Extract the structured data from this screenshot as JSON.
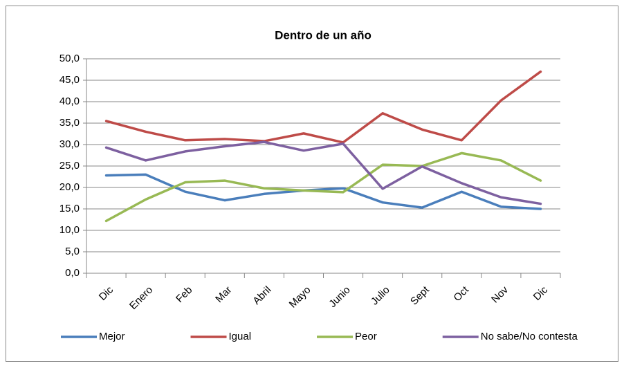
{
  "chart_data": {
    "type": "line",
    "title": "Dentro de un año",
    "categories": [
      "Dic",
      "Enero",
      "Feb",
      "Mar",
      "Abril",
      "Mayo",
      "Junio",
      "Julio",
      "Sept",
      "Oct",
      "Nov",
      "Dic"
    ],
    "series": [
      {
        "name": "Mejor",
        "color": "#4a7ebb",
        "values": [
          22.8,
          23.0,
          19.0,
          17.0,
          18.5,
          19.3,
          19.8,
          16.5,
          15.3,
          19.0,
          15.5,
          15.0
        ]
      },
      {
        "name": "Igual",
        "color": "#be4b48",
        "values": [
          35.5,
          33.0,
          31.0,
          31.3,
          30.8,
          32.6,
          30.5,
          37.3,
          33.5,
          31.0,
          40.3,
          47.0
        ]
      },
      {
        "name": "Peor",
        "color": "#98b954",
        "values": [
          12.2,
          17.2,
          21.2,
          21.6,
          19.8,
          19.3,
          18.9,
          25.3,
          25.0,
          28.0,
          26.3,
          21.6
        ]
      },
      {
        "name": "No sabe/No contesta",
        "color": "#7d60a0",
        "values": [
          29.3,
          26.3,
          28.4,
          29.6,
          30.6,
          28.6,
          30.2,
          19.7,
          24.9,
          21.0,
          17.7,
          16.2
        ]
      }
    ],
    "ylim": [
      0,
      50
    ],
    "yticks": [
      {
        "value": 0,
        "label": "0,0"
      },
      {
        "value": 5,
        "label": "5,0"
      },
      {
        "value": 10,
        "label": "10,0"
      },
      {
        "value": 15,
        "label": "15,0"
      },
      {
        "value": 20,
        "label": "20,0"
      },
      {
        "value": 25,
        "label": "25,0"
      },
      {
        "value": 30,
        "label": "30,0"
      },
      {
        "value": 35,
        "label": "35,0"
      },
      {
        "value": 40,
        "label": "40,0"
      },
      {
        "value": 45,
        "label": "45,0"
      },
      {
        "value": 50,
        "label": "50,0"
      }
    ],
    "grid": true,
    "legend": "bottom"
  }
}
